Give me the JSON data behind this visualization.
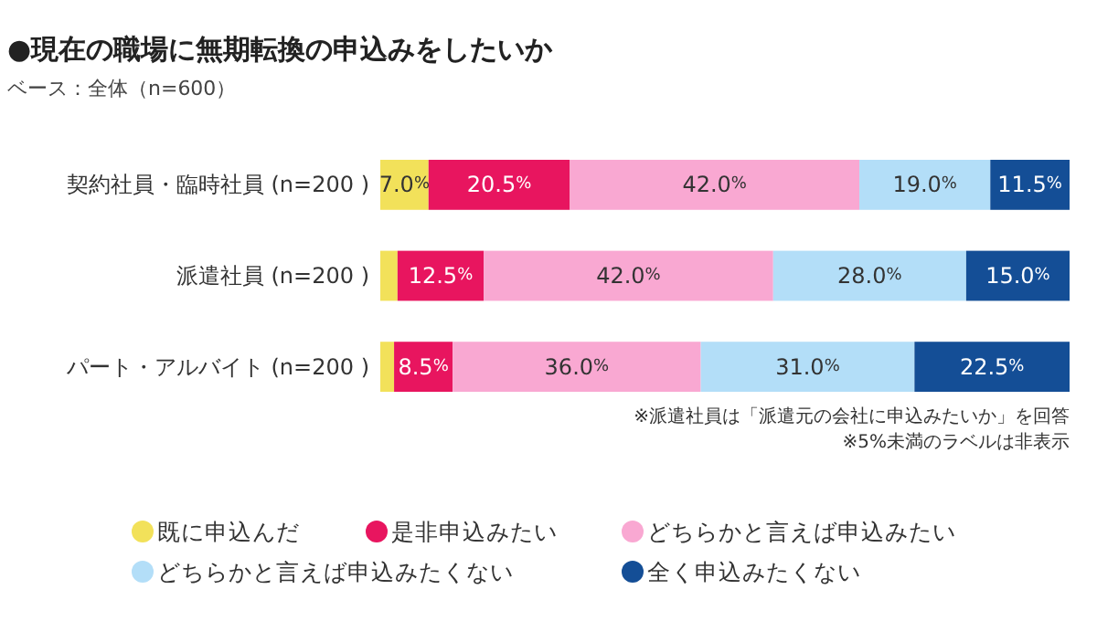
{
  "chart_data": {
    "type": "bar",
    "orientation": "horizontal",
    "stacked": true,
    "title": "●現在の職場に無期転換の申込みをしたいか",
    "subtitle": "ベース：全体（n=600）",
    "categories": [
      "契約社員・臨時社員 (n=200 )",
      "派遣社員 (n=200 )",
      "パート・アルバイト (n=200 )"
    ],
    "series": [
      {
        "name": "既に申込んだ",
        "color": "#f2e15a",
        "values": [
          7.0,
          2.5,
          2.0
        ],
        "value_labels": [
          "7.0%",
          null,
          null
        ]
      },
      {
        "name": "是非申込みたい",
        "color": "#e8155f",
        "values": [
          20.5,
          12.5,
          8.5
        ],
        "value_labels": [
          "20.5%",
          "12.5%",
          "8.5%"
        ]
      },
      {
        "name": "どちらかと言えば申込みたい",
        "color": "#f9a8d2",
        "values": [
          42.0,
          42.0,
          36.0
        ],
        "value_labels": [
          "42.0%",
          "42.0%",
          "36.0%"
        ]
      },
      {
        "name": "どちらかと言えば申込みたくない",
        "color": "#b3def8",
        "values": [
          19.0,
          28.0,
          31.0
        ],
        "value_labels": [
          "19.0%",
          "28.0%",
          "31.0%"
        ]
      },
      {
        "name": "全く申込みたくない",
        "color": "#144e96",
        "values": [
          11.5,
          15.0,
          22.5
        ],
        "value_labels": [
          "11.5%",
          "15.0%",
          "22.5%"
        ]
      }
    ],
    "legend": "bottom",
    "annotations": [
      "※派遣社員は「派遣元の会社に申込みたいか」を回答",
      "※5%未満のラベルは非表示"
    ]
  }
}
